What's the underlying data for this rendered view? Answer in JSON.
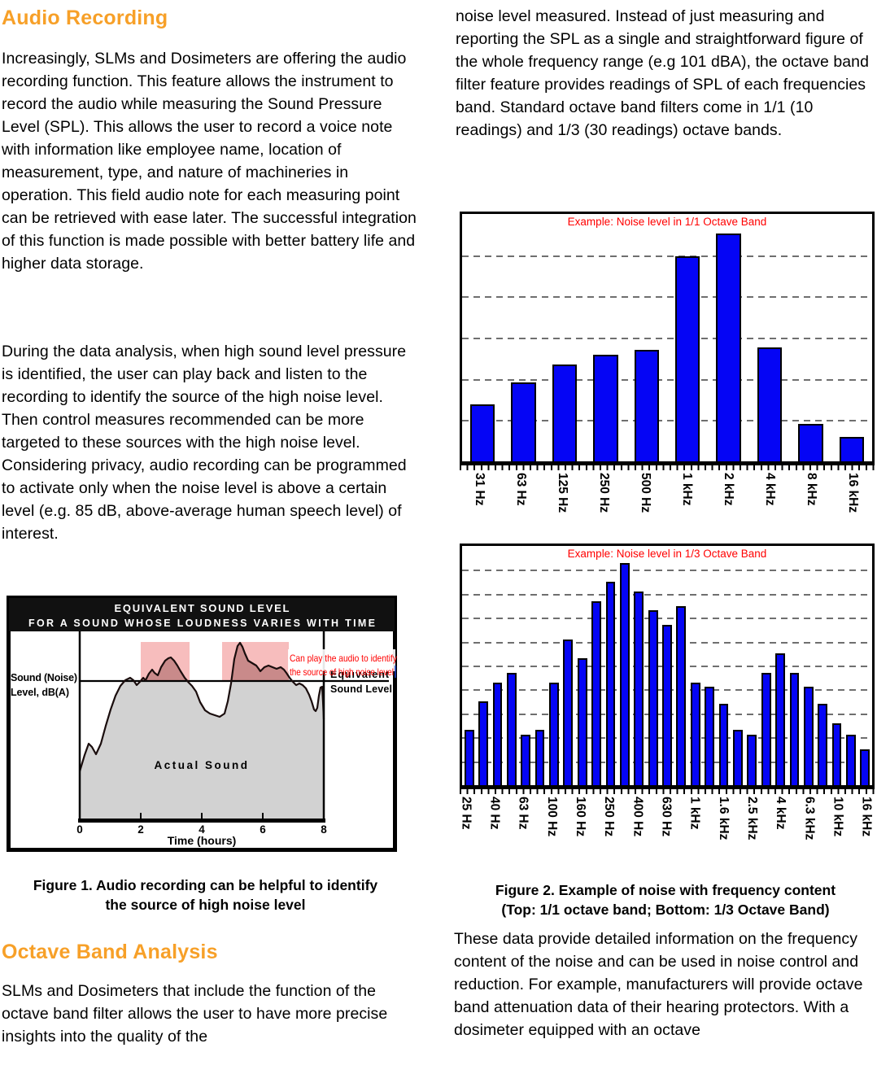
{
  "left_column": {
    "heading1": "Audio Recording",
    "paragraph1": "Increasingly, SLMs and Dosimeters are offering the audio recording function. This feature allows the instrument to record the audio while measuring the Sound Pressure Level (SPL). This allows the user to record a voice note with information like employee name, location of measurement, type, and nature of machineries in operation. This field audio note for each measuring point can be retrieved with ease later. The successful integration of this function is made possible with better battery life and higher data storage.",
    "paragraph2": "During the data analysis, when high sound level pressure is identified, the user can play back and listen to the recording to identify the source of the high noise level. Then control measures recommended can be more targeted to these sources with the high noise level. Considering privacy, audio recording can be programmed to activate only when the noise level is above a certain level (e.g. 85 dB, above-average human speech level) of interest.",
    "figure1_caption_line1": "Figure 1. Audio recording can be helpful to identify",
    "figure1_caption_line2": "the source of high noise level",
    "heading2": "Octave Band Analysis",
    "paragraph3": "SLMs and Dosimeters that include the function of the octave band filter allows the user to have more precise insights into the quality of the"
  },
  "right_column": {
    "paragraph1": "noise level measured. Instead of just measuring and reporting the SPL as a single and straightforward figure of the whole frequency range (e.g 101 dBA), the octave band filter feature provides readings of SPL of each frequencies band. Standard octave band filters come in 1/1 (10 readings) and 1/3 (30 readings) octave bands.",
    "figure2_caption_line1": "Figure 2. Example of noise with frequency content",
    "figure2_caption_line2": "(Top: 1/1 octave band; Bottom: 1/3 Octave Band)",
    "paragraph2": "These data provide detailed information on the frequency content of the noise and can be used in noise control and reduction. For example, manufacturers will provide octave band attenuation data of their hearing protectors. With a dosimeter equipped with an octave"
  },
  "figure1": {
    "header_line1": "EQUIVALENT SOUND LEVEL",
    "header_line2": "FOR A SOUND WHOSE LOUDNESS VARIES WITH TIME",
    "y_axis_label_line1": "Sound (Noise)",
    "y_axis_label_line2": "Level, dB(A)",
    "equivalent_label_line1": "Equivalent",
    "equivalent_label_line2": "Sound Level",
    "area_label": "Actual Sound",
    "annotation_line1": "Can play the audio to identify",
    "annotation_line2": "the source of high noise level",
    "x_ticks": [
      "0",
      "2",
      "4",
      "6",
      "8"
    ],
    "x_axis_label": "Time (hours)"
  },
  "chart_data": [
    {
      "type": "bar",
      "title": "Example: Noise level in 1/1 Octave Band",
      "axis_labels": [
        "31 Hz",
        "63 Hz",
        "125 Hz",
        "250 Hz",
        "500 Hz",
        "1 kHz",
        "2 kHz",
        "4 kHz",
        "8 kHz",
        "16 kHz"
      ],
      "values_percent": [
        23,
        32,
        39,
        43,
        45,
        83,
        92,
        46,
        15,
        10
      ],
      "gridline_intervals": 6,
      "label_under_bar_step": 1,
      "bar_color": "#0505f5",
      "grid_on": true,
      "legend": "none",
      "y_axis_values_shown": false
    },
    {
      "type": "bar",
      "title": "Example: Noise level in 1/3 Octave Band",
      "axis_labels": [
        "25 Hz",
        "40 Hz",
        "63 Hz",
        "100 Hz",
        "160 Hz",
        "250 Hz",
        "400 Hz",
        "630 Hz",
        "1 kHz",
        "1.6 kHz",
        "2.5 kHz",
        "4 kHz",
        "6.3 kHz",
        "10 kHz",
        "16 kHz"
      ],
      "values_percent": [
        23,
        35,
        43,
        47,
        21,
        23,
        43,
        61,
        53,
        77,
        85,
        93,
        81,
        73,
        67,
        75,
        43,
        41,
        34,
        23,
        21,
        47,
        55,
        47,
        41,
        34,
        26,
        21,
        15
      ],
      "gridline_intervals": 10,
      "label_under_bar_step": 2,
      "bar_color": "#0505f5",
      "grid_on": true,
      "legend": "none",
      "y_axis_values_shown": false
    }
  ],
  "colors": {
    "heading_orange": "#F7A028",
    "chart_title_red": "#FF0000",
    "bar_blue": "#0505f5",
    "figure_pink": "#F7BDBD",
    "figure_dark_pink": "#C98A8A",
    "figure_gray": "#D2D2D2"
  }
}
